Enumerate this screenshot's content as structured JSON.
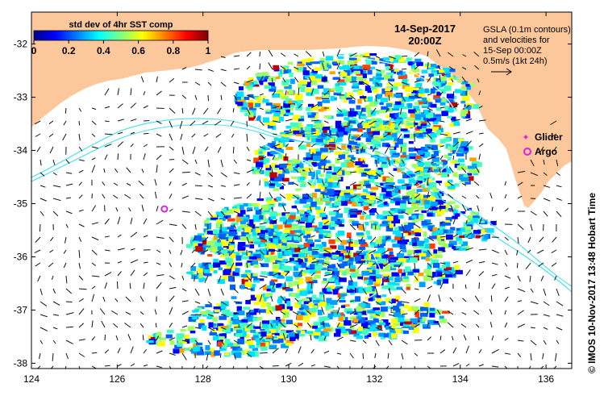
{
  "colorbar": {
    "title": "std dev of 4hr SST comp",
    "ticks": [
      "0",
      "0.2",
      "0.4",
      "0.6",
      "0.8",
      "1"
    ],
    "colormap": [
      "#00008f",
      "#0000ff",
      "#0080ff",
      "#00ffff",
      "#80ff80",
      "#ffff00",
      "#ff8000",
      "#ff0000",
      "#800000"
    ]
  },
  "header": {
    "date": "14-Sep-2017",
    "time": "20:00Z"
  },
  "info": {
    "lines": [
      "GSLA (0.1m contours)",
      "and velocities for",
      "15-Sep 00:00Z",
      "0.5m/s (1kt 24h)"
    ]
  },
  "legend": {
    "glider": "Glider",
    "argo": "Argo",
    "glider_color": "#e020e0",
    "argo_color": "#e020e0"
  },
  "credit": "© IMOS 10-Nov-2017 13:48 Hobart Time",
  "axes": {
    "x_ticks": [
      "124",
      "126",
      "128",
      "130",
      "132",
      "134",
      "136"
    ],
    "y_ticks": [
      "-32",
      "-33",
      "-34",
      "-35",
      "-36",
      "-37",
      "-38"
    ],
    "xlim": [
      124,
      136.6
    ],
    "ylim": [
      -38.1,
      -31.4
    ]
  },
  "markers": {
    "argo": [
      {
        "lon": 127.1,
        "lat": -35.1
      }
    ]
  },
  "colors": {
    "land": "#fcc89b",
    "ocean": "#ffffff",
    "contour": "#40e0f0"
  }
}
